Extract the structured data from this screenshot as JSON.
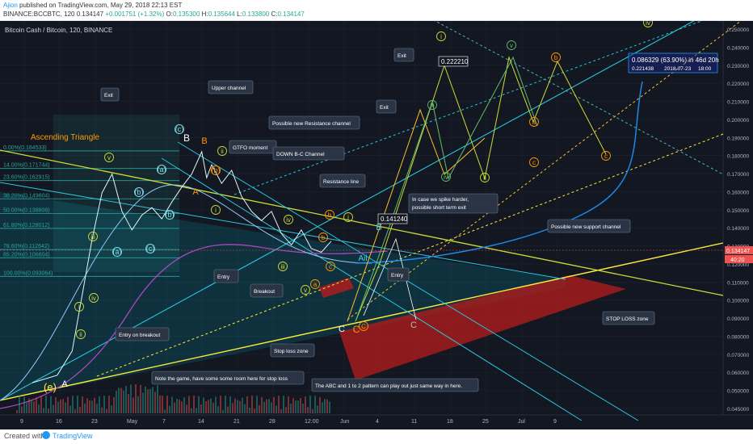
{
  "header": {
    "author": "Ajion",
    "published": "published on TradingView.com, May 29, 2018 22:13 EST",
    "symbol_line": "BINANCE:BCCBTC, 120",
    "last": "0.134147",
    "change": "+0.001751 (+1.32%)",
    "o_label": "O:",
    "o": "0.135300",
    "h_label": "H:",
    "h": "0.135644",
    "l_label": "L:",
    "l": "0.133800",
    "c_label": "C:",
    "c": "0.134147"
  },
  "chart_title": "Bitcoin Cash / Bitcoin, 120, BINANCE",
  "footer": {
    "created": "Created with",
    "brand": "TradingView"
  },
  "colors": {
    "background": "#131722",
    "up": "#26a69a",
    "down": "#ef5350",
    "accent": "#ffeb3b",
    "blue": "#2196f3"
  },
  "chart_data": {
    "type": "line",
    "y_ticks": [
      "0.250000",
      "0.240000",
      "0.230000",
      "0.220000",
      "0.210000",
      "0.200000",
      "0.190000",
      "0.180000",
      "0.170000",
      "0.160000",
      "0.150000",
      "0.140000",
      "0.130000",
      "0.120000",
      "0.110000",
      "0.100000",
      "0.090000",
      "0.080000",
      "0.070000",
      "0.060000",
      "0.050000",
      "0.045000"
    ],
    "ylim": [
      0.045,
      0.25
    ],
    "x_ticks": [
      "9",
      "16",
      "23",
      "May",
      "7",
      "14",
      "21",
      "28",
      "12:00",
      "Jun",
      "4",
      "11",
      "18",
      "25",
      "Jul",
      "9"
    ],
    "current_price": "0.134147",
    "price_tag_2": "40:20",
    "price_path": [
      {
        "i": 0,
        "price": 0.058
      },
      {
        "i": 5,
        "price": 0.062
      },
      {
        "i": 8,
        "price": 0.075
      },
      {
        "i": 10,
        "price": 0.105
      },
      {
        "i": 12,
        "price": 0.135
      },
      {
        "i": 14,
        "price": 0.16
      },
      {
        "i": 16,
        "price": 0.17
      },
      {
        "i": 18,
        "price": 0.15
      },
      {
        "i": 20,
        "price": 0.14
      },
      {
        "i": 22,
        "price": 0.148
      },
      {
        "i": 24,
        "price": 0.152
      },
      {
        "i": 26,
        "price": 0.146
      },
      {
        "i": 28,
        "price": 0.155
      },
      {
        "i": 30,
        "price": 0.163
      },
      {
        "i": 32,
        "price": 0.17
      },
      {
        "i": 34,
        "price": 0.182
      },
      {
        "i": 35,
        "price": 0.168
      },
      {
        "i": 36,
        "price": 0.175
      },
      {
        "i": 38,
        "price": 0.165
      },
      {
        "i": 40,
        "price": 0.172
      },
      {
        "i": 42,
        "price": 0.158
      },
      {
        "i": 44,
        "price": 0.15
      },
      {
        "i": 46,
        "price": 0.145
      },
      {
        "i": 48,
        "price": 0.15
      },
      {
        "i": 50,
        "price": 0.138
      },
      {
        "i": 52,
        "price": 0.132
      },
      {
        "i": 54,
        "price": 0.14
      },
      {
        "i": 56,
        "price": 0.13
      },
      {
        "i": 58,
        "price": 0.128
      },
      {
        "i": 60,
        "price": 0.134
      }
    ],
    "fib_levels": [
      {
        "label": "0.00%(0.184533)",
        "price": 0.184533
      },
      {
        "label": "14.00%(0.171744)",
        "price": 0.171744
      },
      {
        "label": "23.60%(0.162915)",
        "price": 0.162915
      },
      {
        "label": "38.20%(0.149604)",
        "price": 0.149604
      },
      {
        "label": "50.00%(0.138808)",
        "price": 0.138808
      },
      {
        "label": "61.80%(0.128012)",
        "price": 0.128012
      },
      {
        "label": "78.60%(0.112642)",
        "price": 0.112642
      },
      {
        "label": "85.20%(0.106604)",
        "price": 0.106604
      },
      {
        "label": "100.00%(0.093064)",
        "price": 0.093064
      }
    ],
    "annotations": [
      "Exit",
      "Upper channel",
      "Possible new Resistance channel",
      "GTFO moment",
      "DOWN B-C Channel",
      "Resistance line",
      "Exit",
      "In case we spike harder, possible short term exit",
      "Possible new support channel",
      "Entry",
      "Breakout",
      "Entry",
      "STOP LOSS zone",
      "Stop loss zone",
      "Entry on breakout",
      "Note the game, have some some room here for stop loss",
      "The ABC and 1 to 2 pattern can play out just same way in here.",
      "Exit"
    ],
    "text_labels": [
      "Ascending Triangle",
      "0.222210",
      "0.141240"
    ],
    "projection_box": [
      "0.086329 (63.90%) in 46d 20h",
      "0.221438",
      "2018-07-23",
      "18:00"
    ],
    "wave_labels": [
      "(e)",
      "A",
      "B",
      "C",
      "(c)",
      "(a)",
      "(b)",
      "(a)",
      "(b)",
      "(c)",
      "B",
      "A",
      "(b)",
      "ii",
      "i",
      "iii",
      "iv",
      "v",
      "ii",
      "i",
      "iii",
      "iv",
      "v",
      "a",
      "b",
      "c",
      "b",
      "i",
      "Aii",
      "C",
      "C",
      "c",
      "C",
      "B",
      "i",
      "iii",
      "iv",
      "ii",
      "v",
      "b",
      "a",
      "c",
      "iv"
    ]
  }
}
